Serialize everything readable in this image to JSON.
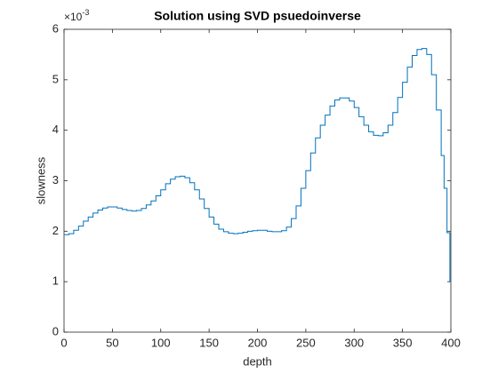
{
  "chart_data": {
    "type": "stairs",
    "title": "Solution using SVD psuedoinverse",
    "x_label": "depth",
    "y_label": "slowness",
    "y_exponent": {
      "base": "×10",
      "power": "-3"
    },
    "xlim": [
      0,
      400
    ],
    "xticks": [
      0,
      50,
      100,
      150,
      200,
      250,
      300,
      350,
      400
    ],
    "ylim": [
      0,
      6
    ],
    "yticks": [
      0,
      1,
      2,
      3,
      4,
      5,
      6
    ],
    "grid": false,
    "color": "#0072bd",
    "x": [
      0,
      5,
      10,
      15,
      20,
      25,
      30,
      35,
      40,
      45,
      50,
      55,
      60,
      65,
      70,
      75,
      80,
      85,
      90,
      95,
      100,
      105,
      110,
      115,
      120,
      125,
      130,
      135,
      140,
      145,
      150,
      155,
      160,
      165,
      170,
      175,
      180,
      185,
      190,
      195,
      200,
      205,
      210,
      215,
      220,
      225,
      230,
      235,
      240,
      245,
      250,
      255,
      260,
      265,
      270,
      275,
      280,
      285,
      290,
      295,
      300,
      305,
      310,
      315,
      320,
      325,
      330,
      335,
      340,
      345,
      350,
      355,
      360,
      365,
      370,
      375,
      380,
      385,
      390,
      393,
      396,
      399
    ],
    "values": [
      1.93,
      1.95,
      2.02,
      2.1,
      2.2,
      2.28,
      2.36,
      2.42,
      2.46,
      2.48,
      2.48,
      2.46,
      2.43,
      2.41,
      2.4,
      2.41,
      2.45,
      2.52,
      2.6,
      2.7,
      2.82,
      2.94,
      3.03,
      3.08,
      3.09,
      3.06,
      2.96,
      2.82,
      2.64,
      2.45,
      2.28,
      2.14,
      2.04,
      1.99,
      1.96,
      1.95,
      1.96,
      1.98,
      2.0,
      2.01,
      2.02,
      2.02,
      2.0,
      1.99,
      1.99,
      2.01,
      2.08,
      2.25,
      2.5,
      2.85,
      3.2,
      3.55,
      3.85,
      4.1,
      4.3,
      4.48,
      4.6,
      4.64,
      4.64,
      4.58,
      4.45,
      4.27,
      4.1,
      3.97,
      3.9,
      3.89,
      3.95,
      4.1,
      4.35,
      4.65,
      4.95,
      5.25,
      5.48,
      5.6,
      5.62,
      5.5,
      5.1,
      4.4,
      3.5,
      2.85,
      1.97,
      1.0
    ]
  }
}
